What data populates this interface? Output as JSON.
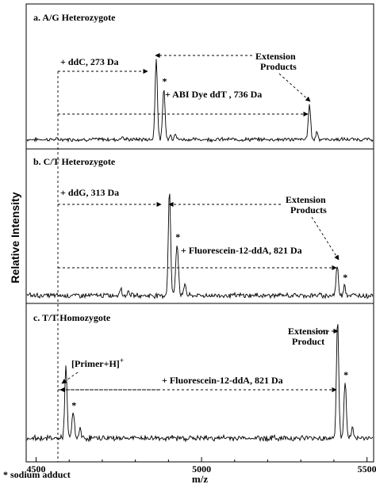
{
  "chart_data": {
    "type": "line",
    "xlabel": "m/z",
    "ylabel": "Relative Intensity",
    "xlim": [
      4470,
      5520
    ],
    "x_ticks": [
      "4500",
      "5000",
      "5500"
    ],
    "x_tick_values": [
      4500,
      5000,
      5500
    ],
    "footnote": "* sodium adduct",
    "reference_mz": 4590,
    "panels": [
      {
        "title": "a. A/G Heterozygote",
        "peaks": [
          {
            "mz": 4863,
            "height": 0.97,
            "width": 3.5
          },
          {
            "mz": 4886,
            "height": 0.62,
            "width": 3.5
          },
          {
            "mz": 4920,
            "height": 0.08,
            "width": 3
          },
          {
            "mz": 4905,
            "height": 0.06,
            "width": 3
          },
          {
            "mz": 5326,
            "height": 0.42,
            "width": 3.5
          },
          {
            "mz": 5349,
            "height": 0.1,
            "width": 3
          },
          {
            "mz": 4760,
            "height": 0.04,
            "width": 3
          }
        ],
        "annotations": [
          {
            "text": "+ ddC, 273 Da",
            "from_mz": 4590,
            "to_mz": 4863
          },
          {
            "text": "+ ABI Dye ddT , 736 Da",
            "from_mz": 4590,
            "to_mz": 5326
          },
          {
            "text": "Extension Products",
            "lines": [
              "Extension",
              "Products"
            ]
          }
        ],
        "sodium_marks": [
          {
            "mz": 4886
          }
        ]
      },
      {
        "title": "b. C/T Heterozygote",
        "peaks": [
          {
            "mz": 4903,
            "height": 0.97,
            "width": 3.5
          },
          {
            "mz": 4926,
            "height": 0.48,
            "width": 4
          },
          {
            "mz": 4950,
            "height": 0.12,
            "width": 3
          },
          {
            "mz": 4755,
            "height": 0.08,
            "width": 3
          },
          {
            "mz": 4780,
            "height": 0.05,
            "width": 3
          },
          {
            "mz": 5410,
            "height": 0.27,
            "width": 3.5
          },
          {
            "mz": 5432,
            "height": 0.11,
            "width": 3
          }
        ],
        "annotations": [
          {
            "text": "+ ddG, 313 Da",
            "from_mz": 4590,
            "to_mz": 4903
          },
          {
            "text": "+ Fluorescein-12-ddA, 821 Da",
            "from_mz": 4590,
            "to_mz": 5410
          },
          {
            "text": "Extension Products",
            "lines": [
              "Extension",
              "Products"
            ]
          }
        ],
        "sodium_marks": [
          {
            "mz": 4926
          },
          {
            "mz": 5432
          }
        ]
      },
      {
        "title": "c. T/T Homozygote",
        "peaks": [
          {
            "mz": 4590,
            "height": 0.58,
            "width": 3.5
          },
          {
            "mz": 4612,
            "height": 0.22,
            "width": 3.5
          },
          {
            "mz": 4632,
            "height": 0.08,
            "width": 3
          },
          {
            "mz": 5411,
            "height": 0.97,
            "width": 3.5
          },
          {
            "mz": 5434,
            "height": 0.47,
            "width": 3.5
          },
          {
            "mz": 5456,
            "height": 0.09,
            "width": 3
          }
        ],
        "annotations": [
          {
            "text": "[Primer+H]",
            "superscript": "+"
          },
          {
            "text": "+ Fluorescein-12-ddA, 821 Da",
            "from_mz": 4590,
            "to_mz": 5411
          },
          {
            "text": "Extension Product",
            "lines": [
              "Extension",
              "Product"
            ]
          }
        ],
        "sodium_marks": [
          {
            "mz": 4612
          },
          {
            "mz": 5434
          }
        ]
      }
    ]
  }
}
